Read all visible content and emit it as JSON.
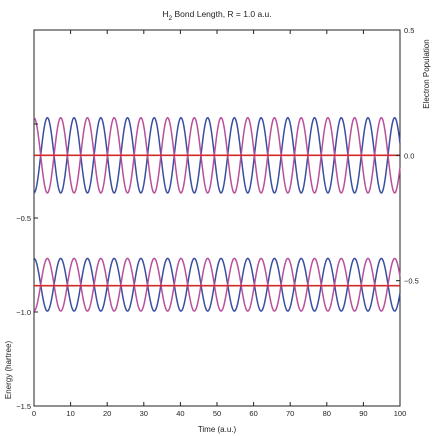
{
  "chart_data": {
    "type": "line",
    "title": "H₂ Bond Length, R = 1.0 a.u.",
    "title_parts": {
      "main": "H",
      "sub": "2",
      "rest": " Bond Length, R = 1.0 a.u."
    },
    "xlabel": "Time (a.u.)",
    "ylabel_left": "Energy (hartree)",
    "ylabel_right": "Electron Population",
    "xlim": [
      0,
      100
    ],
    "xticks": [
      0,
      10,
      20,
      30,
      40,
      50,
      60,
      70,
      80,
      90,
      100
    ],
    "left_axis": {
      "ylim": [
        -1.5,
        0.5
      ],
      "ticks": [
        -1.5,
        -1.0,
        -0.5
      ],
      "tick_labels": [
        "−1.5",
        "−1.0",
        "−0.5"
      ]
    },
    "right_axis": {
      "ylim": [
        -1.0,
        0.5
      ],
      "ticks": [
        0.5,
        0.0,
        -0.5
      ],
      "tick_labels": [
        "0.5",
        "0.0",
        "−0.5"
      ]
    },
    "oscillation_period": 7.3,
    "series": [
      {
        "panel": "lower",
        "axis": "left",
        "kind": "flat",
        "color": "#d02a2a",
        "value": -0.86
      },
      {
        "panel": "lower",
        "axis": "left",
        "kind": "sin",
        "color": "#3a4ea0",
        "center": -0.855,
        "amplitude": 0.14,
        "phase": 0
      },
      {
        "panel": "lower",
        "axis": "left",
        "kind": "sin",
        "color": "#b8509a",
        "center": -0.855,
        "amplitude": 0.14,
        "phase": 180
      },
      {
        "panel": "upper",
        "axis": "right",
        "kind": "flat",
        "color": "#d02a2a",
        "value": 0.0
      },
      {
        "panel": "upper",
        "axis": "right",
        "kind": "sin",
        "color": "#3a4ea0",
        "center": 0.0,
        "amplitude": 0.15,
        "phase": 180
      },
      {
        "panel": "upper",
        "axis": "right",
        "kind": "sin",
        "color": "#b8509a",
        "center": 0.0,
        "amplitude": 0.15,
        "phase": 0
      }
    ]
  }
}
